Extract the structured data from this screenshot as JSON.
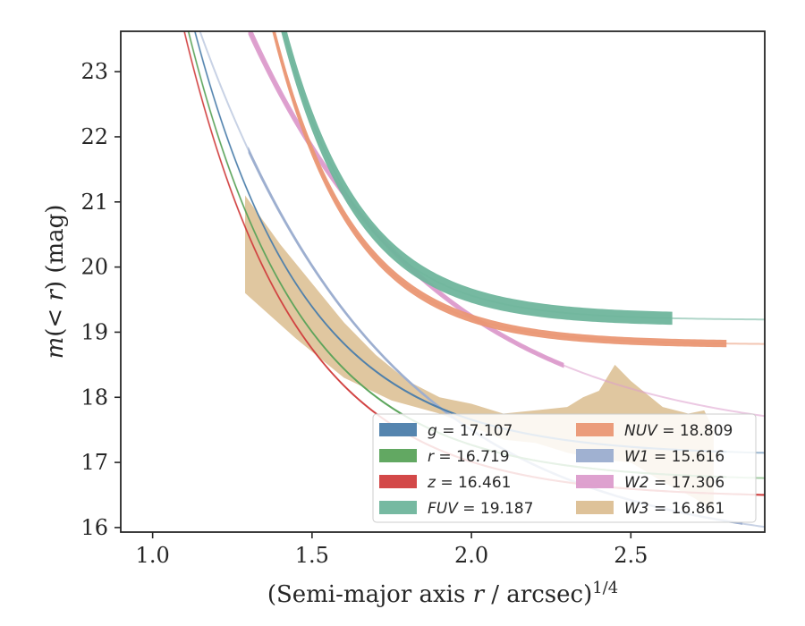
{
  "chart_data": {
    "type": "line",
    "xlabel": "(Semi-major axis r / arcsec)^1/4",
    "ylabel": "m(< r) (mag)",
    "xlim": [
      0.9,
      2.92
    ],
    "ylim": [
      23.62,
      15.93
    ],
    "y_inverted": true,
    "grid": false,
    "legend_position": "lower-right",
    "x_ticks": [
      "1.0",
      "1.5",
      "2.0",
      "2.5"
    ],
    "x_tick_values": [
      1.0,
      1.5,
      2.0,
      2.5
    ],
    "y_ticks": [
      "16",
      "17",
      "18",
      "19",
      "20",
      "21",
      "22",
      "23"
    ],
    "y_tick_values": [
      16,
      17,
      18,
      19,
      20,
      21,
      22,
      23
    ],
    "series": [
      {
        "name": "g = 17.107",
        "band": "g",
        "total_mag": "17.107",
        "label_style": "italic-var",
        "color": "#4c7eab",
        "model": {
          "m_inf": 17.107,
          "A": 9.5,
          "k": 2.85
        },
        "data_range": [
          0.9,
          2.8
        ],
        "band_width": 0.04
      },
      {
        "name": "r = 16.719",
        "band": "r",
        "total_mag": "16.719",
        "label_style": "italic-var",
        "color": "#5aa35a",
        "model": {
          "m_inf": 16.719,
          "A": 9.5,
          "k": 2.85
        },
        "data_range": [
          0.9,
          2.8
        ],
        "band_width": 0.04
      },
      {
        "name": "z = 16.461",
        "band": "z",
        "total_mag": "16.461",
        "label_style": "italic-var",
        "color": "#d13e3e",
        "model": {
          "m_inf": 16.461,
          "A": 9.5,
          "k": 2.85
        },
        "data_range": [
          0.9,
          2.92
        ],
        "band_width": 0.04
      },
      {
        "name": "FUV = 19.187",
        "band": "FUV",
        "total_mag": "19.187",
        "label_style": "italic-name",
        "color": "#6fb59c",
        "model": {
          "m_inf": 19.187,
          "A": 25.0,
          "k": 4.2
        },
        "data_range": [
          1.11,
          2.63
        ],
        "band_width": 0.28
      },
      {
        "name": "NUV = 18.809",
        "band": "NUV",
        "total_mag": "18.809",
        "label_style": "italic-name",
        "color": "#ea9774",
        "model": {
          "m_inf": 18.809,
          "A": 22.0,
          "k": 4.0
        },
        "data_range": [
          1.11,
          2.8
        ],
        "band_width": 0.16
      },
      {
        "name": "W1 = 15.616",
        "band": "W1",
        "total_mag": "15.616",
        "label_style": "italic-name",
        "color": "#9badcf",
        "model": {
          "m_inf": 15.616,
          "A": 10.3,
          "k": 1.7
        },
        "data_range": [
          1.3,
          2.85
        ],
        "band_width": 0.05
      },
      {
        "name": "W2 = 17.306",
        "band": "W2",
        "total_mag": "17.306",
        "label_style": "italic-name",
        "color": "#dc9ccc",
        "model": {
          "m_inf": 17.306,
          "A": 10.6,
          "k": 1.7
        },
        "data_range": [
          1.3,
          2.29
        ],
        "band_width": 0.1
      },
      {
        "name": "W3 = 16.861",
        "band": "W3",
        "total_mag": "16.861",
        "label_style": "italic-name",
        "color": "#dcbf93",
        "band_upper": [
          [
            1.29,
            19.6
          ],
          [
            1.45,
            18.9
          ],
          [
            1.6,
            18.3
          ],
          [
            1.75,
            17.95
          ],
          [
            1.9,
            17.75
          ],
          [
            2.0,
            17.55
          ],
          [
            2.1,
            17.35
          ],
          [
            2.2,
            17.3
          ],
          [
            2.3,
            17.15
          ],
          [
            2.4,
            17.05
          ],
          [
            2.5,
            17.0
          ],
          [
            2.6,
            16.7
          ],
          [
            2.7,
            16.45
          ],
          [
            2.76,
            16.25
          ]
        ],
        "band_lower": [
          [
            2.76,
            17.5
          ],
          [
            2.73,
            17.8
          ],
          [
            2.68,
            17.75
          ],
          [
            2.6,
            17.85
          ],
          [
            2.55,
            18.05
          ],
          [
            2.5,
            18.25
          ],
          [
            2.45,
            18.5
          ],
          [
            2.4,
            18.1
          ],
          [
            2.35,
            18.0
          ],
          [
            2.3,
            17.85
          ],
          [
            2.2,
            17.8
          ],
          [
            2.1,
            17.75
          ],
          [
            2.0,
            17.9
          ],
          [
            1.9,
            18.0
          ],
          [
            1.8,
            18.25
          ],
          [
            1.7,
            18.65
          ],
          [
            1.6,
            19.15
          ],
          [
            1.5,
            19.75
          ],
          [
            1.4,
            20.35
          ],
          [
            1.29,
            21.1
          ]
        ]
      }
    ]
  },
  "legend": {
    "col1": [
      {
        "var": "g",
        "value": "= 17.107",
        "color": "#4c7eab"
      },
      {
        "var": "r",
        "value": "= 16.719",
        "color": "#5aa35a"
      },
      {
        "var": "z",
        "value": "= 16.461",
        "color": "#d13e3e"
      },
      {
        "var": "FUV",
        "value": "= 19.187",
        "color": "#6fb59c"
      }
    ],
    "col2": [
      {
        "var": "NUV",
        "value": "= 18.809",
        "color": "#ea9774"
      },
      {
        "var": "W1",
        "value": "= 15.616",
        "color": "#9badcf"
      },
      {
        "var": "W2",
        "value": "= 17.306",
        "color": "#dc9ccc"
      },
      {
        "var": "W3",
        "value": "= 16.861",
        "color": "#dcbf93"
      }
    ]
  },
  "axes_text": {
    "xlabel_main": "(Semi-major axis ",
    "xlabel_var": "r",
    "xlabel_rest": " / arcsec)",
    "xlabel_sup": "1/4",
    "ylabel_var": "m",
    "ylabel_mid": "(< ",
    "ylabel_var2": "r",
    "ylabel_rest": ") (mag)"
  }
}
